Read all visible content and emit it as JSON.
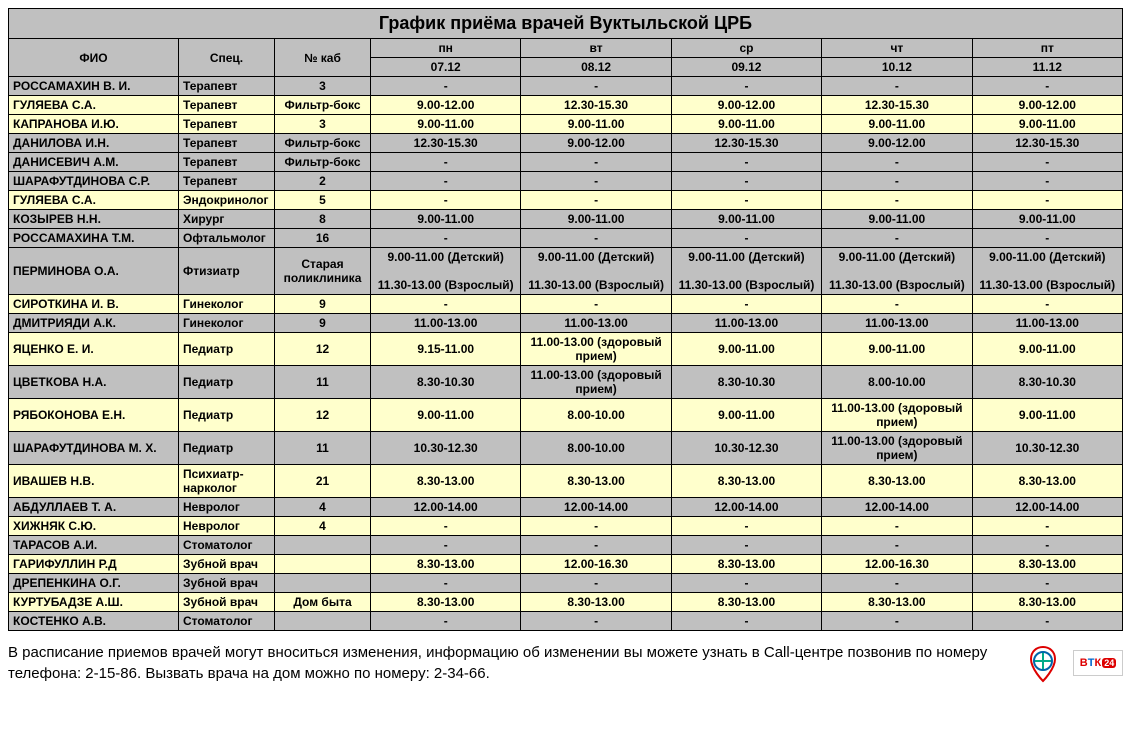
{
  "title": "График приёма врачей Вуктыльской ЦРБ",
  "columns": {
    "name": "ФИО",
    "spec": "Спец.",
    "room": "№ каб",
    "days": [
      "пн",
      "вт",
      "ср",
      "чт",
      "пт"
    ],
    "dates": [
      "07.12",
      "08.12",
      "09.12",
      "10.12",
      "11.12"
    ]
  },
  "col_widths": {
    "name": "170px",
    "spec": "96px",
    "room": "96px",
    "day": "150px"
  },
  "row_colors": {
    "yellow": "#ffffcc",
    "gray": "#c0c0c0"
  },
  "rows": [
    {
      "color": "gray",
      "name": "РОССАМАХИН В. И.",
      "spec": "Терапевт",
      "room": "3",
      "cells": [
        "-",
        "-",
        "-",
        "-",
        "-"
      ]
    },
    {
      "color": "yellow",
      "name": "ГУЛЯЕВА С.А.",
      "spec": "Терапевт",
      "room": "Фильтр-бокс",
      "cells": [
        "9.00-12.00",
        "12.30-15.30",
        "9.00-12.00",
        "12.30-15.30",
        "9.00-12.00"
      ]
    },
    {
      "color": "yellow",
      "name": "КАПРАНОВА И.Ю.",
      "spec": "Терапевт",
      "room": "3",
      "cells": [
        "9.00-11.00",
        "9.00-11.00",
        "9.00-11.00",
        "9.00-11.00",
        "9.00-11.00"
      ]
    },
    {
      "color": "gray",
      "name": "ДАНИЛОВА И.Н.",
      "spec": "Терапевт",
      "room": "Фильтр-бокс",
      "cells": [
        "12.30-15.30",
        "9.00-12.00",
        "12.30-15.30",
        "9.00-12.00",
        "12.30-15.30"
      ]
    },
    {
      "color": "gray",
      "name": "ДАНИСЕВИЧ А.М.",
      "spec": "Терапевт",
      "room": "Фильтр-бокс",
      "cells": [
        "-",
        "-",
        "-",
        "-",
        "-"
      ]
    },
    {
      "color": "gray",
      "name": "ШАРАФУТДИНОВА С.Р.",
      "spec": "Терапевт",
      "room": "2",
      "cells": [
        "-",
        "-",
        "-",
        "-",
        "-"
      ]
    },
    {
      "color": "yellow",
      "name": "ГУЛЯЕВА С.А.",
      "spec": "Эндокринолог",
      "room": "5",
      "cells": [
        "-",
        "-",
        "-",
        "-",
        "-"
      ]
    },
    {
      "color": "gray",
      "name": "КОЗЫРЕВ Н.Н.",
      "spec": "Хирург",
      "room": "8",
      "cells": [
        "9.00-11.00",
        "9.00-11.00",
        "9.00-11.00",
        "9.00-11.00",
        "9.00-11.00"
      ]
    },
    {
      "color": "gray",
      "name": "РОССАМАХИНА Т.М.",
      "spec": "Офтальмолог",
      "room": "16",
      "cells": [
        "-",
        "-",
        "-",
        "-",
        "-"
      ]
    },
    {
      "color": "gray",
      "name": "ПЕРМИНОВА О.А.",
      "spec": "Фтизиатр",
      "room": "Старая поликлиника",
      "cells": [
        "9.00-11.00 (Детский)\n\n11.30-13.00 (Взрослый)",
        "9.00-11.00 (Детский)\n\n11.30-13.00 (Взрослый)",
        "9.00-11.00 (Детский)\n\n11.30-13.00 (Взрослый)",
        "9.00-11.00 (Детский)\n\n11.30-13.00 (Взрослый)",
        "9.00-11.00 (Детский)\n\n11.30-13.00 (Взрослый)"
      ]
    },
    {
      "color": "yellow",
      "name": "СИРОТКИНА И. В.",
      "spec": "Гинеколог",
      "room": "9",
      "cells": [
        "-",
        "-",
        "-",
        "-",
        "-"
      ]
    },
    {
      "color": "gray",
      "name": "ДМИТРИЯДИ А.К.",
      "spec": "Гинеколог",
      "room": "9",
      "cells": [
        "11.00-13.00",
        "11.00-13.00",
        "11.00-13.00",
        "11.00-13.00",
        "11.00-13.00"
      ]
    },
    {
      "color": "yellow",
      "name": "ЯЦЕНКО Е. И.",
      "spec": "Педиатр",
      "room": "12",
      "cells": [
        "9.15-11.00",
        "11.00-13.00 (здоровый прием)",
        "9.00-11.00",
        "9.00-11.00",
        "9.00-11.00"
      ]
    },
    {
      "color": "gray",
      "name": "ЦВЕТКОВА Н.А.",
      "spec": "Педиатр",
      "room": "11",
      "cells": [
        "8.30-10.30",
        "11.00-13.00 (здоровый прием)",
        "8.30-10.30",
        "8.00-10.00",
        "8.30-10.30"
      ]
    },
    {
      "color": "yellow",
      "name": "РЯБОКОНОВА Е.Н.",
      "spec": "Педиатр",
      "room": "12",
      "cells": [
        "9.00-11.00",
        "8.00-10.00",
        "9.00-11.00",
        "11.00-13.00 (здоровый прием)",
        "9.00-11.00"
      ]
    },
    {
      "color": "gray",
      "name": "ШАРАФУТДИНОВА М. Х.",
      "spec": "Педиатр",
      "room": "11",
      "cells": [
        "10.30-12.30",
        "8.00-10.00",
        "10.30-12.30",
        "11.00-13.00 (здоровый прием)",
        "10.30-12.30"
      ]
    },
    {
      "color": "yellow",
      "name": "ИВАШЕВ Н.В.",
      "spec": "Психиатр-нарколог",
      "room": "21",
      "cells": [
        "8.30-13.00",
        "8.30-13.00",
        "8.30-13.00",
        "8.30-13.00",
        "8.30-13.00"
      ]
    },
    {
      "color": "gray",
      "name": "АБДУЛЛАЕВ Т. А.",
      "spec": "Невролог",
      "room": "4",
      "cells": [
        "12.00-14.00",
        "12.00-14.00",
        "12.00-14.00",
        "12.00-14.00",
        "12.00-14.00"
      ]
    },
    {
      "color": "yellow",
      "name": "ХИЖНЯК С.Ю.",
      "spec": "Невролог",
      "room": "4",
      "cells": [
        "-",
        "-",
        "-",
        "-",
        "-"
      ]
    },
    {
      "color": "gray",
      "name": "ТАРАСОВ А.И.",
      "spec": "Стоматолог",
      "room": "",
      "cells": [
        "-",
        "-",
        "-",
        "-",
        "-"
      ]
    },
    {
      "color": "yellow",
      "name": "ГАРИФУЛЛИН Р.Д",
      "spec": "Зубной врач",
      "room": "",
      "cells": [
        "8.30-13.00",
        "12.00-16.30",
        "8.30-13.00",
        "12.00-16.30",
        "8.30-13.00"
      ]
    },
    {
      "color": "gray",
      "name": "ДРЕПЕНКИНА О.Г.",
      "spec": "Зубной врач",
      "room": "",
      "cells": [
        "-",
        "-",
        "-",
        "-",
        "-"
      ]
    },
    {
      "color": "yellow",
      "name": "КУРТУБАДЗЕ А.Ш.",
      "spec": "Зубной врач",
      "room": "Дом быта",
      "cells": [
        "8.30-13.00",
        "8.30-13.00",
        "8.30-13.00",
        "8.30-13.00",
        "8.30-13.00"
      ]
    },
    {
      "color": "gray",
      "name": "КОСТЕНКО А.В.",
      "spec": "Стоматолог",
      "room": "",
      "cells": [
        "-",
        "-",
        "-",
        "-",
        "-"
      ]
    }
  ],
  "footer": "В расписание приемов врачей могут вноситься изменения, информацию об изменении вы можете узнать в Call-центре позвонив по номеру телефона: 2-15-86. Вызвать врача на дом можно по номеру: 2-34-66.",
  "logo2_text": {
    "b": "В",
    "t": "Т",
    "k": "К",
    "n": "24"
  }
}
